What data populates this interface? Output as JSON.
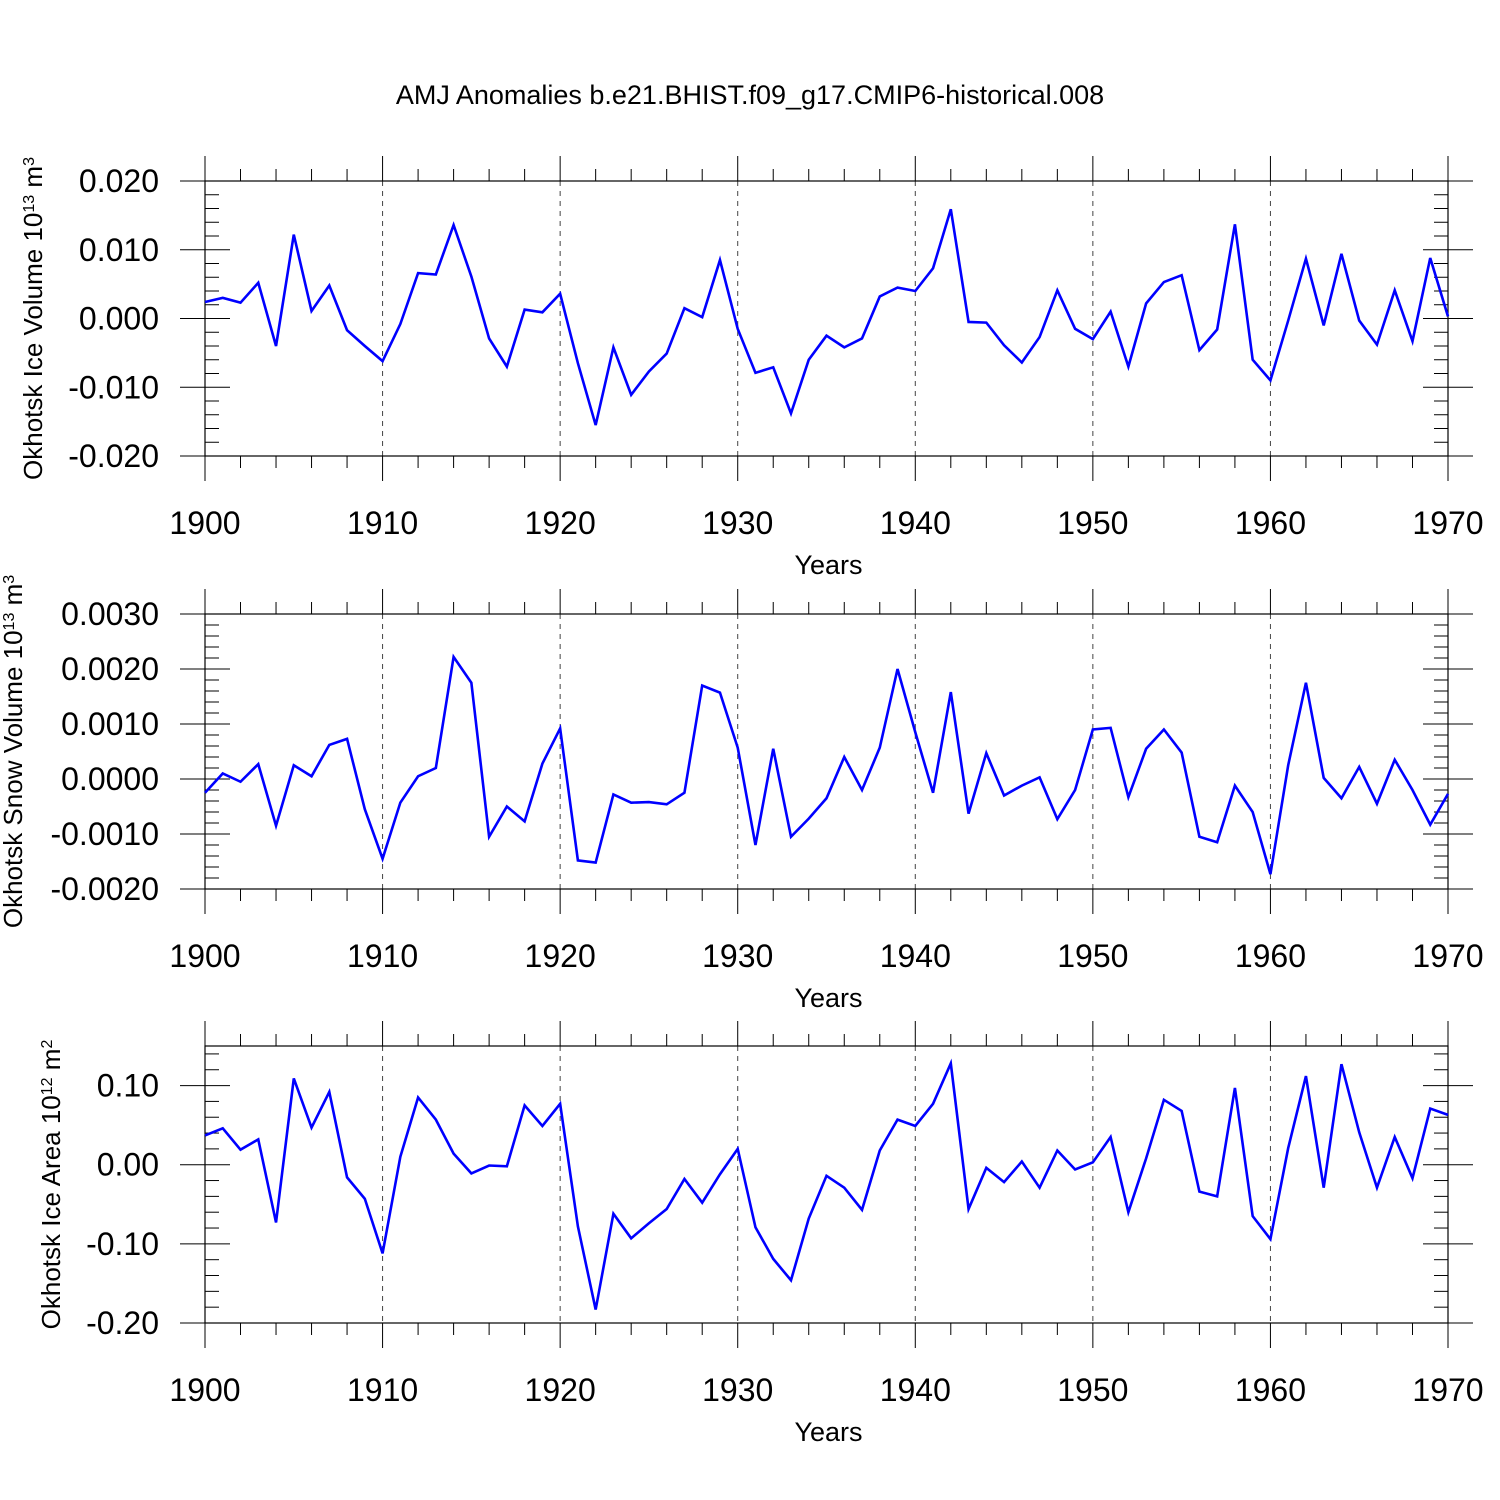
{
  "figure": {
    "title": "AMJ Anomalies b.e21.BHIST.f09_g17.CMIP6-historical.008"
  },
  "chart_data": [
    {
      "type": "line",
      "title": "AMJ Anomalies b.e21.BHIST.f09_g17.CMIP6-historical.008",
      "ylabel_main": "Okhotsk Ice Volume 10",
      "ylabel_exp": "13",
      "ylabel_unit": " m",
      "ylabel_unit_exp": "3",
      "xlabel": "Years",
      "xlim": [
        1900,
        1970
      ],
      "ylim": [
        -0.02,
        0.02
      ],
      "xticks": [
        1900,
        1910,
        1920,
        1930,
        1940,
        1950,
        1960,
        1970
      ],
      "xtick_labels": [
        "1900",
        "1910",
        "1920",
        "1930",
        "1940",
        "1950",
        "1960",
        "1970"
      ],
      "yticks": [
        -0.02,
        -0.01,
        0.0,
        0.01,
        0.02
      ],
      "ytick_labels": [
        "-0.020",
        "-0.010",
        "0.000",
        "0.010",
        "0.020"
      ],
      "yminor_step": 0.002,
      "xminor_step": 2,
      "grid": "vertical-dashed-major",
      "line_color": "#0000ff",
      "x": [
        1900,
        1901,
        1902,
        1903,
        1904,
        1905,
        1906,
        1907,
        1908,
        1909,
        1910,
        1911,
        1912,
        1913,
        1914,
        1915,
        1916,
        1917,
        1918,
        1919,
        1920,
        1921,
        1922,
        1923,
        1924,
        1925,
        1926,
        1927,
        1928,
        1929,
        1930,
        1931,
        1932,
        1933,
        1934,
        1935,
        1936,
        1937,
        1938,
        1939,
        1940,
        1941,
        1942,
        1943,
        1944,
        1945,
        1946,
        1947,
        1948,
        1949,
        1950,
        1951,
        1952,
        1953,
        1954,
        1955,
        1956,
        1957,
        1958,
        1959,
        1960,
        1961,
        1962,
        1963,
        1964,
        1965,
        1966,
        1967,
        1968,
        1969,
        1970
      ],
      "series": [
        {
          "name": "Okhotsk Ice Volume",
          "values": [
            0.0024,
            0.003,
            0.0023,
            0.0052,
            -0.004,
            0.0122,
            0.0011,
            0.0048,
            -0.0017,
            -0.004,
            -0.0062,
            -0.0008,
            0.0066,
            0.0064,
            0.0136,
            0.0061,
            -0.0029,
            -0.007,
            0.0013,
            0.0009,
            0.0036,
            -0.0065,
            -0.0155,
            -0.0042,
            -0.0111,
            -0.0077,
            -0.0051,
            0.0015,
            0.0002,
            0.0085,
            -0.0015,
            -0.0079,
            -0.0071,
            -0.0138,
            -0.006,
            -0.0025,
            -0.0042,
            -0.0029,
            0.0032,
            0.0045,
            0.004,
            0.0073,
            0.0159,
            -0.0005,
            -0.0006,
            -0.0039,
            -0.0064,
            -0.0027,
            0.0041,
            -0.0015,
            -0.003,
            0.001,
            -0.007,
            0.0022,
            0.0053,
            0.0063,
            -0.0046,
            -0.0016,
            0.0137,
            -0.006,
            -0.009,
            -0.0003,
            0.0087,
            -0.001,
            0.0094,
            -0.0003,
            -0.0038,
            0.0041,
            -0.0033,
            0.0088,
            0.0003
          ]
        }
      ]
    },
    {
      "type": "line",
      "ylabel_main": "Okhotsk Snow Volume 10",
      "ylabel_exp": "13",
      "ylabel_unit": " m",
      "ylabel_unit_exp": "3",
      "xlabel": "Years",
      "xlim": [
        1900,
        1970
      ],
      "ylim": [
        -0.002,
        0.003
      ],
      "xticks": [
        1900,
        1910,
        1920,
        1930,
        1940,
        1950,
        1960,
        1970
      ],
      "xtick_labels": [
        "1900",
        "1910",
        "1920",
        "1930",
        "1940",
        "1950",
        "1960",
        "1970"
      ],
      "yticks": [
        -0.002,
        -0.001,
        0.0,
        0.001,
        0.002,
        0.003
      ],
      "ytick_labels": [
        "-0.0020",
        "-0.0010",
        "0.0000",
        "0.0010",
        "0.0020",
        "0.0030"
      ],
      "yminor_step": 0.0002,
      "xminor_step": 2,
      "grid": "vertical-dashed-major",
      "line_color": "#0000ff",
      "x": [
        1900,
        1901,
        1902,
        1903,
        1904,
        1905,
        1906,
        1907,
        1908,
        1909,
        1910,
        1911,
        1912,
        1913,
        1914,
        1915,
        1916,
        1917,
        1918,
        1919,
        1920,
        1921,
        1922,
        1923,
        1924,
        1925,
        1926,
        1927,
        1928,
        1929,
        1930,
        1931,
        1932,
        1933,
        1934,
        1935,
        1936,
        1937,
        1938,
        1939,
        1940,
        1941,
        1942,
        1943,
        1944,
        1945,
        1946,
        1947,
        1948,
        1949,
        1950,
        1951,
        1952,
        1953,
        1954,
        1955,
        1956,
        1957,
        1958,
        1959,
        1960,
        1961,
        1962,
        1963,
        1964,
        1965,
        1966,
        1967,
        1968,
        1969,
        1970
      ],
      "series": [
        {
          "name": "Okhotsk Snow Volume",
          "values": [
            -0.00025,
            0.0001,
            -5e-05,
            0.00027,
            -0.00085,
            0.00025,
            5e-05,
            0.00062,
            0.00073,
            -0.00055,
            -0.00145,
            -0.00043,
            5e-05,
            0.0002,
            0.00222,
            0.00175,
            -0.00105,
            -0.0005,
            -0.00077,
            0.00028,
            0.00092,
            -0.00148,
            -0.00152,
            -0.00028,
            -0.00043,
            -0.00042,
            -0.00046,
            -0.00025,
            0.0017,
            0.00157,
            0.00057,
            -0.0012,
            0.00055,
            -0.00105,
            -0.00072,
            -0.00035,
            0.0004,
            -0.0002,
            0.00057,
            0.002,
            0.00085,
            -0.00025,
            0.00158,
            -0.00063,
            0.00047,
            -0.0003,
            -0.00012,
            3e-05,
            -0.00073,
            -0.0002,
            0.0009,
            0.00093,
            -0.00033,
            0.00055,
            0.0009,
            0.00048,
            -0.00105,
            -0.00115,
            -0.00012,
            -0.0006,
            -0.00173,
            0.00025,
            0.00175,
            2e-05,
            -0.00035,
            0.00022,
            -0.00045,
            0.00035,
            -0.0002,
            -0.00083,
            -0.00027
          ]
        }
      ]
    },
    {
      "type": "line",
      "ylabel_main": "Okhotsk Ice Area 10",
      "ylabel_exp": "12",
      "ylabel_unit": " m",
      "ylabel_unit_exp": "2",
      "xlabel": "Years",
      "xlim": [
        1900,
        1970
      ],
      "ylim": [
        -0.2,
        0.15
      ],
      "xticks": [
        1900,
        1910,
        1920,
        1930,
        1940,
        1950,
        1960,
        1970
      ],
      "xtick_labels": [
        "1900",
        "1910",
        "1920",
        "1930",
        "1940",
        "1950",
        "1960",
        "1970"
      ],
      "yticks": [
        -0.2,
        -0.1,
        0.0,
        0.1
      ],
      "ytick_labels": [
        "-0.20",
        "-0.10",
        "0.00",
        "0.10"
      ],
      "yminor_step": 0.02,
      "xminor_step": 2,
      "grid": "vertical-dashed-major",
      "line_color": "#0000ff",
      "x": [
        1900,
        1901,
        1902,
        1903,
        1904,
        1905,
        1906,
        1907,
        1908,
        1909,
        1910,
        1911,
        1912,
        1913,
        1914,
        1915,
        1916,
        1917,
        1918,
        1919,
        1920,
        1921,
        1922,
        1923,
        1924,
        1925,
        1926,
        1927,
        1928,
        1929,
        1930,
        1931,
        1932,
        1933,
        1934,
        1935,
        1936,
        1937,
        1938,
        1939,
        1940,
        1941,
        1942,
        1943,
        1944,
        1945,
        1946,
        1947,
        1948,
        1949,
        1950,
        1951,
        1952,
        1953,
        1954,
        1955,
        1956,
        1957,
        1958,
        1959,
        1960,
        1961,
        1962,
        1963,
        1964,
        1965,
        1966,
        1967,
        1968,
        1969,
        1970
      ],
      "series": [
        {
          "name": "Okhotsk Ice Area",
          "values": [
            0.037,
            0.046,
            0.019,
            0.032,
            -0.073,
            0.109,
            0.047,
            0.092,
            -0.016,
            -0.043,
            -0.112,
            0.01,
            0.085,
            0.057,
            0.014,
            -0.011,
            -0.001,
            -0.002,
            0.075,
            0.049,
            0.077,
            -0.078,
            -0.183,
            -0.062,
            -0.093,
            -0.074,
            -0.056,
            -0.018,
            -0.048,
            -0.012,
            0.02,
            -0.079,
            -0.119,
            -0.146,
            -0.068,
            -0.014,
            -0.029,
            -0.057,
            0.018,
            0.057,
            0.049,
            0.077,
            0.128,
            -0.056,
            -0.004,
            -0.022,
            0.004,
            -0.029,
            0.018,
            -0.006,
            0.003,
            0.035,
            -0.06,
            0.008,
            0.082,
            0.068,
            -0.034,
            -0.04,
            0.097,
            -0.065,
            -0.094,
            0.021,
            0.112,
            -0.029,
            0.127,
            0.041,
            -0.029,
            0.035,
            -0.017,
            0.071,
            0.063
          ]
        }
      ]
    }
  ]
}
